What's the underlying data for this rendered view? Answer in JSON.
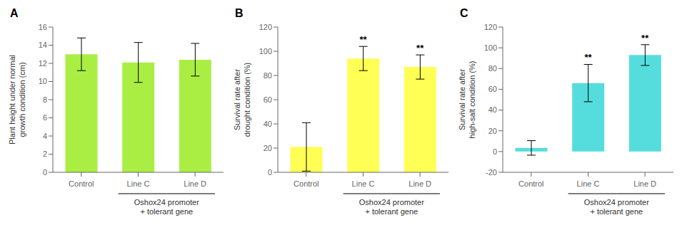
{
  "chart_data": [
    {
      "type": "bar",
      "title": "A",
      "categories": [
        "Control",
        "Line C",
        "Line D"
      ],
      "values": [
        13.0,
        12.1,
        12.4
      ],
      "errors": [
        1.8,
        2.2,
        1.8
      ],
      "ylabel": "Plant height under normal\ngrowth condition (cm)",
      "ylim": [
        0,
        16
      ],
      "yticks": [
        0,
        2,
        4,
        6,
        8,
        10,
        12,
        14,
        16
      ],
      "color": "#aaee44",
      "grid": false,
      "annotations": [
        {
          "text": "Oshox24 promoter\n+ tolerant gene",
          "categories": [
            "Line C",
            "Line D"
          ]
        }
      ]
    },
    {
      "type": "bar",
      "title": "B",
      "categories": [
        "Control",
        "Line C",
        "Line D"
      ],
      "values": [
        21.0,
        94.0,
        87.0
      ],
      "errors": [
        20.0,
        10.0,
        10.0
      ],
      "ylabel": "Survival rate after\ndrought condition (%)",
      "ylim": [
        0,
        120
      ],
      "yticks": [
        0,
        20,
        40,
        60,
        80,
        100,
        120
      ],
      "color": "#ffff55",
      "grid": false,
      "annotations": [
        {
          "text": "**",
          "category": "Line C"
        },
        {
          "text": "**",
          "category": "Line D"
        },
        {
          "text": "Oshox24 promoter\n+ tolerant gene",
          "categories": [
            "Line C",
            "Line D"
          ]
        }
      ]
    },
    {
      "type": "bar",
      "title": "C",
      "categories": [
        "Control",
        "Line C",
        "Line D"
      ],
      "values": [
        3.5,
        66.0,
        93.0
      ],
      "errors": [
        7.0,
        18.0,
        10.0
      ],
      "ylabel": "Survival rate after\nhigh-salt condition (%)",
      "ylim": [
        -20,
        120
      ],
      "yticks": [
        -20,
        0,
        20,
        40,
        60,
        80,
        100,
        120
      ],
      "color": "#55dddd",
      "grid": false,
      "annotations": [
        {
          "text": "**",
          "category": "Line C"
        },
        {
          "text": "**",
          "category": "Line D"
        },
        {
          "text": "Oshox24 promoter\n+ tolerant gene",
          "categories": [
            "Line C",
            "Line D"
          ]
        }
      ]
    }
  ]
}
